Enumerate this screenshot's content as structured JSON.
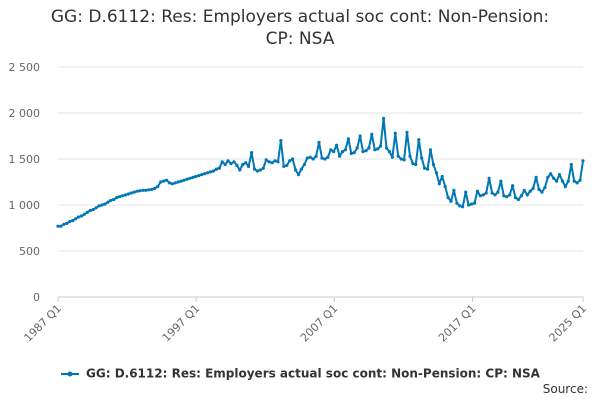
{
  "chart_data": {
    "type": "line",
    "title_lines": [
      "GG: D.6112: Res: Employers actual soc cont: Non-Pension:",
      "CP: NSA"
    ],
    "series_name": "GG: D.6112: Res: Employers actual soc cont: Non-Pension: CP: NSA",
    "series_color": "#0077b6",
    "ylim": [
      0,
      2500
    ],
    "y_ticks": [
      "0",
      "500",
      "1 000",
      "1 500",
      "2 000",
      "2 500"
    ],
    "y_tick_values": [
      0,
      500,
      1000,
      1500,
      2000,
      2500
    ],
    "x_ticks": [
      "1987 Q1",
      "1997 Q1",
      "2007 Q1",
      "2017 Q1",
      "2025 Q1"
    ],
    "x_tick_years": [
      1987,
      1997,
      2007,
      2017,
      2025
    ],
    "x_start": "1987 Q1",
    "x_end": "2025 Q1",
    "grid": "horizontal",
    "legend_position": "bottom",
    "values": [
      770,
      770,
      790,
      800,
      820,
      830,
      850,
      870,
      880,
      900,
      920,
      940,
      950,
      970,
      990,
      1000,
      1010,
      1030,
      1050,
      1060,
      1080,
      1090,
      1100,
      1110,
      1120,
      1130,
      1140,
      1150,
      1155,
      1160,
      1160,
      1165,
      1170,
      1180,
      1200,
      1250,
      1260,
      1270,
      1240,
      1230,
      1240,
      1250,
      1260,
      1270,
      1280,
      1290,
      1300,
      1310,
      1320,
      1330,
      1340,
      1350,
      1360,
      1370,
      1390,
      1400,
      1470,
      1440,
      1480,
      1450,
      1470,
      1430,
      1380,
      1440,
      1460,
      1420,
      1570,
      1390,
      1370,
      1380,
      1400,
      1490,
      1470,
      1460,
      1480,
      1470,
      1700,
      1420,
      1430,
      1480,
      1500,
      1380,
      1330,
      1390,
      1440,
      1510,
      1520,
      1500,
      1530,
      1680,
      1510,
      1500,
      1520,
      1600,
      1580,
      1650,
      1530,
      1580,
      1600,
      1720,
      1560,
      1570,
      1620,
      1750,
      1580,
      1590,
      1620,
      1770,
      1600,
      1610,
      1640,
      1940,
      1620,
      1580,
      1520,
      1780,
      1530,
      1500,
      1490,
      1790,
      1530,
      1450,
      1440,
      1710,
      1510,
      1400,
      1390,
      1600,
      1440,
      1350,
      1230,
      1310,
      1200,
      1080,
      1040,
      1160,
      1020,
      990,
      980,
      1140,
      1000,
      1010,
      1020,
      1150,
      1100,
      1110,
      1130,
      1290,
      1130,
      1110,
      1140,
      1260,
      1100,
      1090,
      1110,
      1210,
      1080,
      1060,
      1100,
      1160,
      1110,
      1150,
      1180,
      1300,
      1170,
      1140,
      1190,
      1300,
      1340,
      1290,
      1260,
      1330,
      1260,
      1200,
      1260,
      1440,
      1260,
      1240,
      1270,
      1480
    ]
  },
  "footer": {
    "source_label": "Source:"
  }
}
